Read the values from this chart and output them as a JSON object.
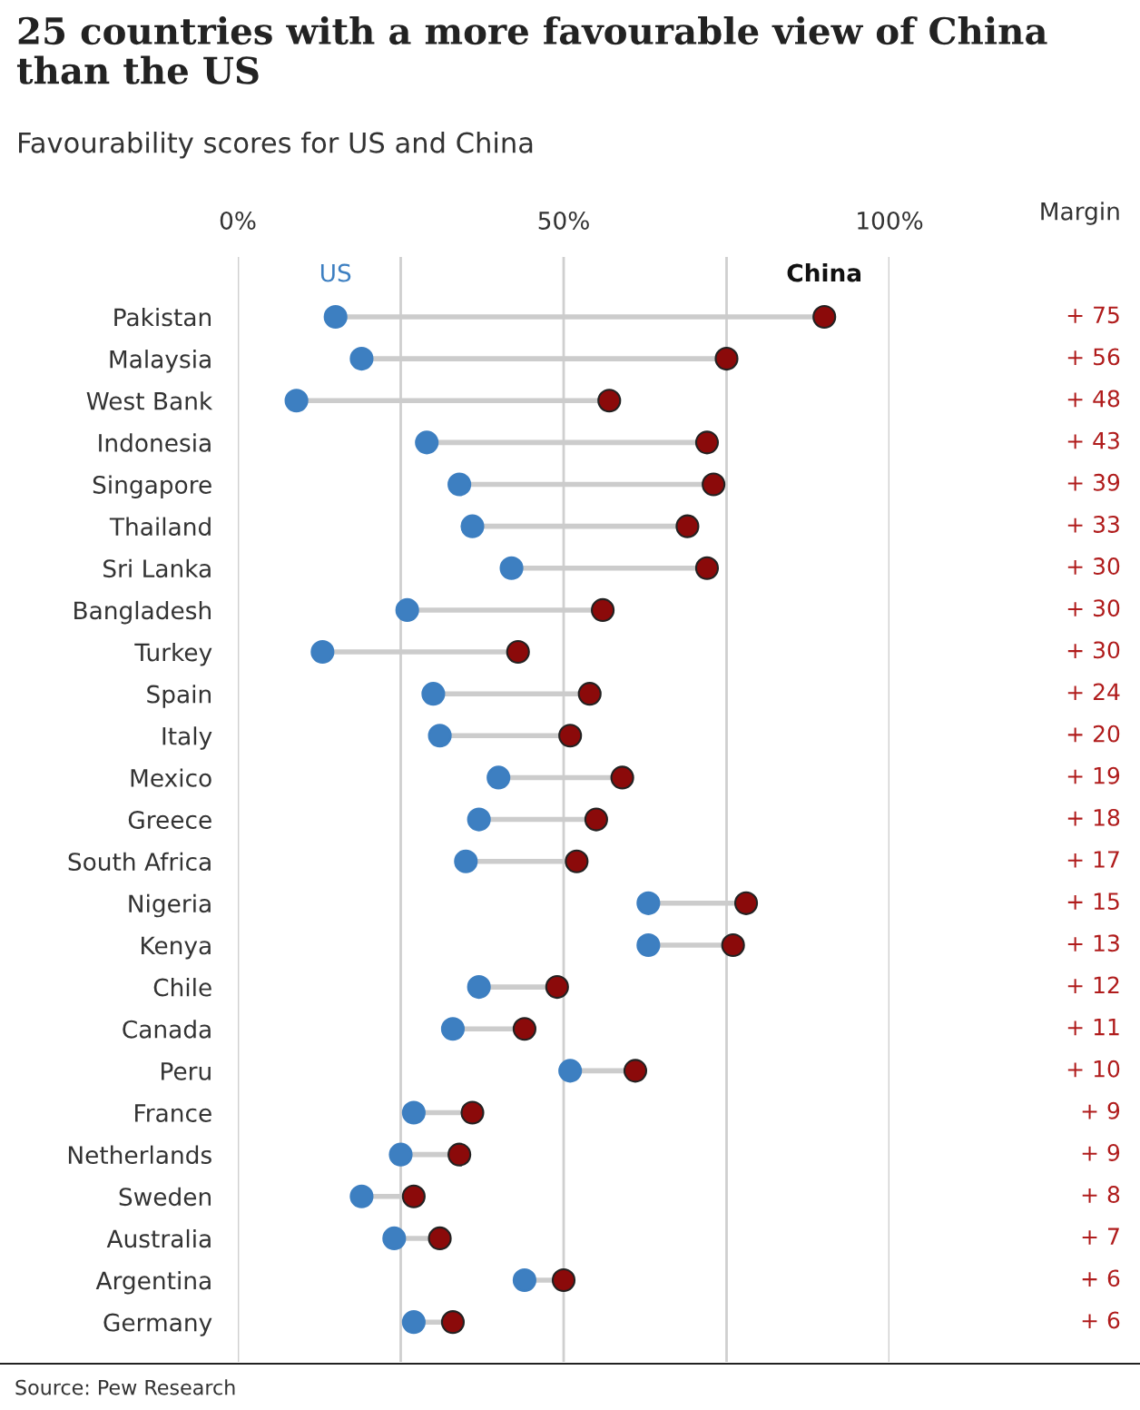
{
  "chart_data": {
    "type": "scatter",
    "title": "25 countries with a more favourable view of China than the US",
    "subtitle": "Favourability scores for US and China",
    "categories": [
      "Pakistan",
      "Malaysia",
      "West Bank",
      "Indonesia",
      "Singapore",
      "Thailand",
      "Sri Lanka",
      "Bangladesh",
      "Turkey",
      "Spain",
      "Italy",
      "Mexico",
      "Greece",
      "South Africa",
      "Nigeria",
      "Kenya",
      "Chile",
      "Canada",
      "Peru",
      "France",
      "Netherlands",
      "Sweden",
      "Australia",
      "Argentina",
      "Germany"
    ],
    "orientation": "horizontal",
    "series": [
      {
        "name": "US",
        "color": "#3d7fc1",
        "values": [
          15,
          19,
          9,
          29,
          34,
          36,
          42,
          26,
          13,
          30,
          31,
          40,
          37,
          35,
          63,
          63,
          37,
          33,
          51,
          27,
          25,
          19,
          24,
          44,
          27
        ]
      },
      {
        "name": "China",
        "color": "#8b0a0a",
        "values": [
          90,
          75,
          57,
          72,
          73,
          69,
          72,
          56,
          43,
          54,
          51,
          59,
          55,
          52,
          78,
          76,
          49,
          44,
          61,
          36,
          34,
          27,
          31,
          50,
          33
        ]
      }
    ],
    "xlim": [
      0,
      100
    ],
    "xticks": [
      {
        "value": 0,
        "label": "0%"
      },
      {
        "value": 25,
        "label": null
      },
      {
        "value": 50,
        "label": "50%"
      },
      {
        "value": 75,
        "label": null
      },
      {
        "value": 100,
        "label": "100%"
      }
    ],
    "grid": "x",
    "legend": "top",
    "marker": "circle",
    "annotations": [
      "Margin",
      "Source: Pew Research",
      "+ 75",
      "+ 56",
      "+ 48",
      "+ 43",
      "+ 39",
      "+ 33",
      "+ 30",
      "+ 30",
      "+ 30",
      "+ 24",
      "+ 20",
      "+ 19",
      "+ 18",
      "+ 17",
      "+ 15",
      "+ 13",
      "+ 12",
      "+ 11",
      "+ 10",
      "+ 9",
      "+ 9",
      "+ 8",
      "+ 7",
      "+ 6",
      "+ 6"
    ]
  }
}
